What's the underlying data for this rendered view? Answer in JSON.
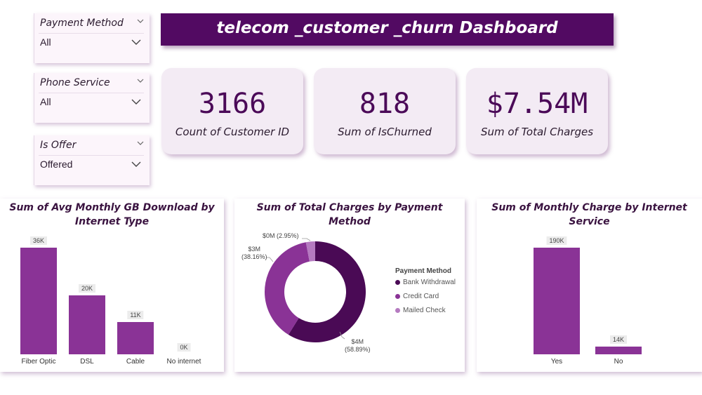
{
  "title": "telecom _customer _churn Dashboard",
  "slicers": [
    {
      "label": "Payment Method",
      "value": "All"
    },
    {
      "label": "Phone Service",
      "value": "All"
    },
    {
      "label": "Is Offer",
      "value": "Offered"
    }
  ],
  "kpis": [
    {
      "value": "3166",
      "label": "Count of Customer ID"
    },
    {
      "value": "818",
      "label": "Sum of IsChurned"
    },
    {
      "value": "$7.54M",
      "label": "Sum of Total Charges"
    }
  ],
  "colors": {
    "title_bg": "#520a62",
    "bar": "#8a3396",
    "kpi_text": "#4b0a58",
    "donut_dark": "#4a0a55",
    "donut_mid": "#8a3396",
    "donut_light": "#b57ac0"
  },
  "chart_data": [
    {
      "type": "bar",
      "title": "Sum of Avg Monthly GB Download by Internet Type",
      "categories": [
        "Fiber Optic",
        "DSL",
        "Cable",
        "No internet"
      ],
      "values": [
        36000,
        20000,
        11000,
        0
      ],
      "data_labels": [
        "36K",
        "20K",
        "11K",
        "0K"
      ],
      "ylim": [
        0,
        36000
      ]
    },
    {
      "type": "pie",
      "title": "Sum of Total Charges by Payment Method",
      "legend_title": "Payment Method",
      "legend_position": "right",
      "categories": [
        "Bank Withdrawal",
        "Credit Card",
        "Mailed Check"
      ],
      "values": [
        58.89,
        38.16,
        2.95
      ],
      "data_labels": [
        {
          "amount": "$4M",
          "pct": "(58.89%)"
        },
        {
          "amount": "$3M",
          "pct": "(38.16%)"
        },
        {
          "amount": "$0M",
          "pct": "(2.95%)"
        }
      ]
    },
    {
      "type": "bar",
      "title": "Sum of Monthly Charge by Internet Service",
      "categories": [
        "Yes",
        "No"
      ],
      "values": [
        190000,
        14000
      ],
      "data_labels": [
        "190K",
        "14K"
      ],
      "ylim": [
        0,
        190000
      ]
    }
  ]
}
